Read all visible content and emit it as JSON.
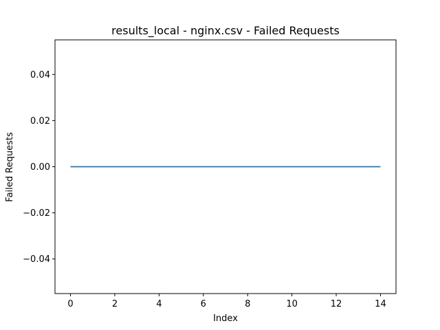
{
  "chart_data": {
    "type": "line",
    "title": "results_local - nginx.csv - Failed Requests",
    "xlabel": "Index",
    "ylabel": "Failed Requests",
    "xlim": [
      -0.7,
      14.7
    ],
    "ylim": [
      -0.055,
      0.055
    ],
    "xticks": [
      0,
      2,
      4,
      6,
      8,
      10,
      12,
      14
    ],
    "xtick_labels": [
      "0",
      "2",
      "4",
      "6",
      "8",
      "10",
      "12",
      "14"
    ],
    "yticks": [
      -0.04,
      -0.02,
      0.0,
      0.02,
      0.04
    ],
    "ytick_labels": [
      "−0.04",
      "−0.02",
      "0.00",
      "0.02",
      "0.04"
    ],
    "grid": false,
    "legend": "none",
    "series": [
      {
        "color": "#1f77b4",
        "x": [
          0,
          1,
          2,
          3,
          4,
          5,
          6,
          7,
          8,
          9,
          10,
          11,
          12,
          13,
          14
        ],
        "y": [
          0,
          0,
          0,
          0,
          0,
          0,
          0,
          0,
          0,
          0,
          0,
          0,
          0,
          0,
          0
        ]
      }
    ]
  }
}
